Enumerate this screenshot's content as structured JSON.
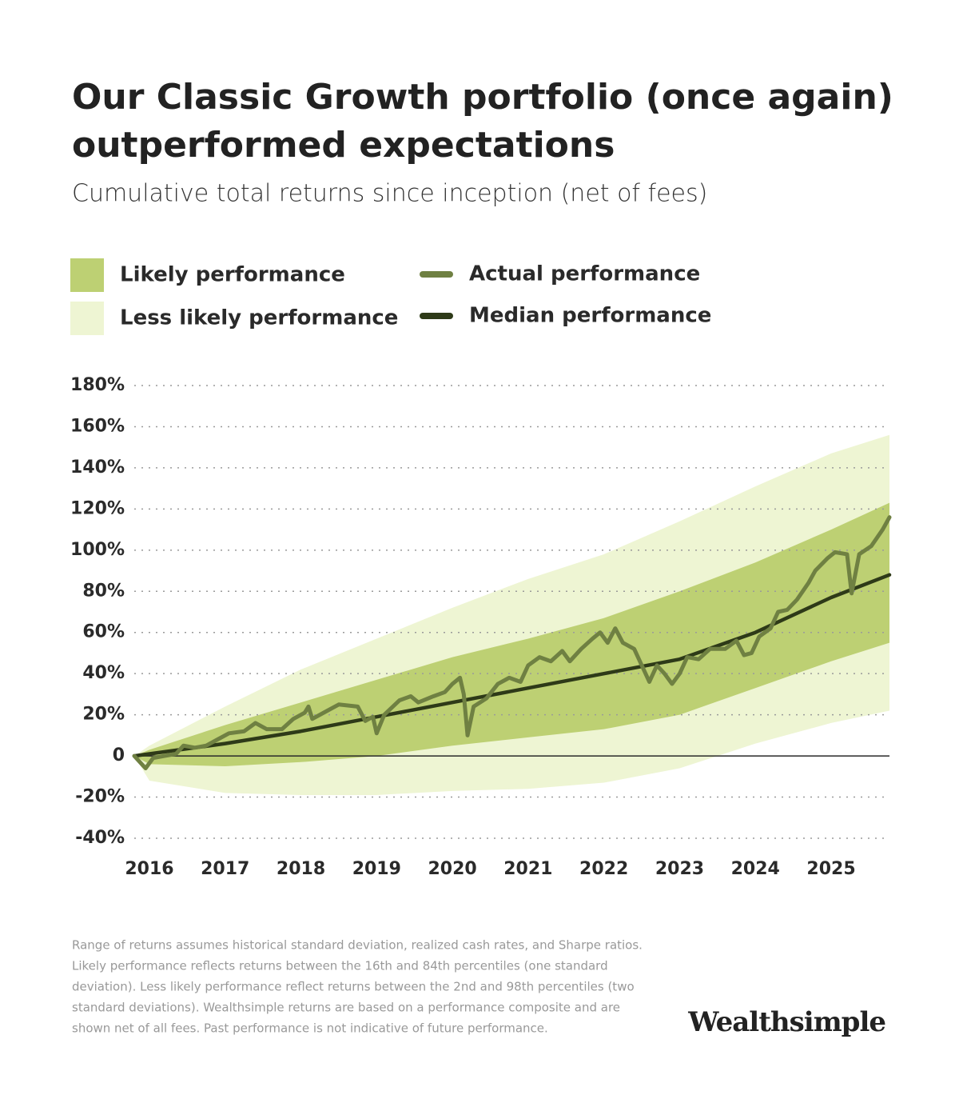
{
  "chart_data": {
    "type": "line",
    "title": [
      "Our Classic Growth portfolio (once again)",
      "outperformed expectations"
    ],
    "subtitle": "Cumulative total returns since inception (net of fees)",
    "xlim": [
      2015.8,
      2025.77
    ],
    "xticks": [
      2016,
      2017,
      2018,
      2019,
      2020,
      2021,
      2022,
      2023,
      2024,
      2025
    ],
    "ylim": [
      -40,
      180
    ],
    "yticks": [
      {
        "value": -40,
        "label": "-40%"
      },
      {
        "value": -20,
        "label": "-20%"
      },
      0,
      {
        "value": 20,
        "label": "20%"
      },
      {
        "value": 40,
        "label": "40%"
      },
      {
        "value": 60,
        "label": "60%"
      },
      {
        "value": 80,
        "label": "80%"
      },
      {
        "value": 100,
        "label": "100%"
      },
      {
        "value": 120,
        "label": "120%"
      },
      {
        "value": 140,
        "label": "140%"
      },
      {
        "value": 160,
        "label": "160%"
      },
      {
        "value": 180,
        "label": "180%"
      }
    ],
    "grid": true,
    "x": [
      2015.8,
      2016,
      2017,
      2018,
      2019,
      2020,
      2021,
      2022,
      2023,
      2024,
      2025,
      2025.77
    ],
    "bands": [
      {
        "name": "Likely performance",
        "color": "#bdd073",
        "lower": [
          0,
          -4,
          -5,
          -3,
          0,
          5,
          9,
          13,
          20,
          33,
          46,
          55
        ],
        "upper": [
          0,
          3,
          15,
          26,
          37,
          48,
          57,
          67,
          80,
          94,
          110,
          123
        ]
      },
      {
        "name": "Less likely performance",
        "color": "#eef5d3",
        "lower": [
          0,
          -12,
          -18,
          -19,
          -19,
          -17,
          -16,
          -13,
          -6,
          6,
          16,
          22
        ],
        "upper": [
          0,
          5,
          24,
          42,
          57,
          72,
          86,
          98,
          114,
          131,
          147,
          156
        ]
      }
    ],
    "series": [
      {
        "name": "Actual performance",
        "color": "#6f8042",
        "x": [
          2015.8,
          2015.9,
          2015.95,
          2016.05,
          2016.2,
          2016.35,
          2016.45,
          2016.6,
          2016.75,
          2016.9,
          2017.05,
          2017.25,
          2017.4,
          2017.55,
          2017.75,
          2017.9,
          2018.05,
          2018.1,
          2018.15,
          2018.35,
          2018.5,
          2018.75,
          2018.85,
          2018.95,
          2019.0,
          2019.1,
          2019.3,
          2019.45,
          2019.55,
          2019.75,
          2019.9,
          2020.0,
          2020.1,
          2020.15,
          2020.2,
          2020.28,
          2020.45,
          2020.6,
          2020.75,
          2020.9,
          2021.0,
          2021.15,
          2021.3,
          2021.45,
          2021.55,
          2021.7,
          2021.85,
          2021.95,
          2022.05,
          2022.15,
          2022.25,
          2022.4,
          2022.5,
          2022.6,
          2022.7,
          2022.8,
          2022.9,
          2023.0,
          2023.1,
          2023.25,
          2023.4,
          2023.6,
          2023.75,
          2023.85,
          2023.95,
          2024.05,
          2024.2,
          2024.3,
          2024.42,
          2024.55,
          2024.7,
          2024.79,
          2024.95,
          2025.05,
          2025.21,
          2025.27,
          2025.37,
          2025.53,
          2025.68,
          2025.77
        ],
        "values": [
          0,
          -4,
          -6,
          -1,
          0,
          1,
          5,
          4,
          5,
          8,
          11,
          12,
          16,
          13,
          13,
          18,
          21,
          24,
          18,
          22,
          25,
          24,
          17,
          19,
          11,
          20,
          27,
          29,
          26,
          29,
          31,
          35,
          38,
          30,
          10,
          24,
          28,
          35,
          38,
          36,
          44,
          48,
          46,
          51,
          46,
          52,
          57,
          60,
          55,
          62,
          55,
          52,
          44,
          36,
          44,
          40,
          35,
          40,
          48,
          47,
          52,
          52,
          56,
          49,
          50,
          58,
          62,
          70,
          71,
          76,
          84,
          90,
          96,
          99,
          98,
          79,
          98,
          102,
          110,
          116
        ]
      },
      {
        "name": "Median performance",
        "color": "#2e3a18",
        "values": [
          0,
          1,
          6,
          12,
          19,
          26,
          33,
          40,
          47,
          60,
          77,
          88
        ]
      }
    ],
    "footnote": [
      "Range of returns assumes historical standard deviation, realized cash rates, and Sharpe ratios.",
      "Likely performance reflects returns between the 16th and 84th percentiles (one standard",
      "deviation). Less likely performance reflect returns between the 2nd and 98th percentiles (two",
      "standard deviations). Wealthsimple returns are based on a performance composite and are",
      "shown net of all fees. Past performance is not indicative of future performance."
    ],
    "brand": "Wealthsimple"
  }
}
